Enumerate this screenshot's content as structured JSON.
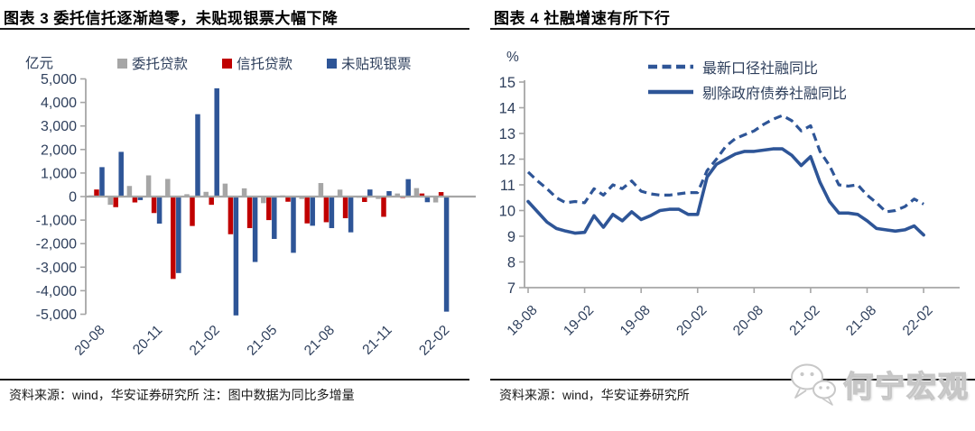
{
  "colors": {
    "bar_gray": "#A6A6A6",
    "bar_red": "#C00000",
    "brand_blue": "#2E5597",
    "axis_text": "#2E3F5C",
    "axis_line": "#A6A6A6",
    "title_text": "#000000",
    "source_text": "#1A1A1A",
    "watermark_gray": "#C8C8C8"
  },
  "left_chart": {
    "title": "图表 3 委托信托逐渐趋零，未贴现银票大幅下降",
    "unit_label": "亿元",
    "source_note": "资料来源：wind，华安证券研究所 注：图中数据为同比多增量",
    "chart_data": {
      "type": "bar",
      "ylabel": "亿元",
      "ylim": [
        -5000,
        5000
      ],
      "ytick_step": 1000,
      "grid": false,
      "legend_position": "top",
      "categories": [
        "20-08",
        "20-09",
        "20-10",
        "20-11",
        "20-12",
        "21-01",
        "21-02",
        "21-03",
        "21-04",
        "21-05",
        "21-06",
        "21-07",
        "21-08",
        "21-09",
        "21-10",
        "21-11",
        "21-12",
        "22-01",
        "22-02"
      ],
      "x_tick_labels": [
        "20-08",
        "20-11",
        "21-02",
        "21-05",
        "21-08",
        "21-11",
        "22-02"
      ],
      "series": [
        {
          "name": "委托贷款",
          "color": "#A6A6A6",
          "values": [
            50,
            -350,
            450,
            900,
            750,
            100,
            200,
            550,
            350,
            -280,
            50,
            -100,
            575,
            295,
            -50,
            -100,
            130,
            360,
            -250
          ]
        },
        {
          "name": "信托贷款",
          "color": "#C00000",
          "values": [
            300,
            -450,
            -250,
            -700,
            -3500,
            -1250,
            -350,
            -1600,
            -1340,
            -1000,
            -220,
            -1140,
            -1090,
            -920,
            -230,
            -860,
            -60,
            130,
            190
          ]
        },
        {
          "name": "未贴现银票",
          "color": "#2E5597",
          "values": [
            1250,
            1900,
            -150,
            -1150,
            -3250,
            3500,
            4600,
            -5050,
            -2780,
            -1800,
            -2390,
            -1240,
            -1340,
            -1520,
            300,
            230,
            740,
            -240,
            -4890
          ]
        }
      ]
    }
  },
  "right_chart": {
    "title": "图表 4 社融增速有所下行",
    "unit_label": "%",
    "source_note": "资料来源：wind，华安证券研究所",
    "chart_data": {
      "type": "line",
      "ylabel": "%",
      "ylim": [
        7,
        15
      ],
      "ytick_step": 1,
      "grid": false,
      "legend_position": "top",
      "line_color": "#2E5597",
      "x": [
        "18-08",
        "18-09",
        "18-10",
        "18-11",
        "18-12",
        "19-01",
        "19-02",
        "19-03",
        "19-04",
        "19-05",
        "19-06",
        "19-07",
        "19-08",
        "19-09",
        "19-10",
        "19-11",
        "19-12",
        "20-01",
        "20-02",
        "20-03",
        "20-04",
        "20-05",
        "20-06",
        "20-07",
        "20-08",
        "20-09",
        "20-10",
        "20-11",
        "20-12",
        "21-01",
        "21-02",
        "21-03",
        "21-04",
        "21-05",
        "21-06",
        "21-07",
        "21-08",
        "21-09",
        "21-10",
        "21-11",
        "21-12",
        "22-01",
        "22-02"
      ],
      "x_tick_labels": [
        "18-08",
        "19-02",
        "19-08",
        "20-02",
        "20-08",
        "21-02",
        "21-08",
        "22-02"
      ],
      "series": [
        {
          "name": "最新口径社融同比",
          "style": "dashed",
          "values": [
            11.5,
            11.15,
            10.85,
            10.5,
            10.3,
            10.35,
            10.3,
            10.85,
            10.6,
            11.0,
            10.85,
            11.15,
            10.75,
            10.65,
            10.6,
            10.6,
            10.65,
            10.7,
            10.7,
            11.55,
            12.0,
            12.5,
            12.8,
            12.95,
            13.1,
            13.35,
            13.55,
            13.7,
            13.5,
            13.1,
            13.3,
            12.3,
            11.75,
            11.0,
            10.95,
            11.0,
            10.6,
            10.3,
            9.95,
            10.0,
            10.15,
            10.45,
            10.25
          ]
        },
        {
          "name": "剔除政府债券社融同比",
          "style": "solid",
          "values": [
            10.35,
            9.95,
            9.55,
            9.3,
            9.2,
            9.12,
            9.15,
            9.8,
            9.35,
            9.85,
            9.6,
            9.95,
            9.65,
            9.8,
            10.0,
            10.05,
            10.05,
            9.85,
            9.85,
            11.3,
            11.8,
            12.0,
            12.2,
            12.3,
            12.3,
            12.35,
            12.4,
            12.4,
            12.15,
            11.75,
            12.1,
            11.1,
            10.35,
            9.9,
            9.9,
            9.85,
            9.6,
            9.3,
            9.25,
            9.2,
            9.25,
            9.4,
            9.05
          ]
        }
      ]
    }
  },
  "watermark": {
    "icon": "wechat-icon",
    "text": "何宁宏观"
  }
}
